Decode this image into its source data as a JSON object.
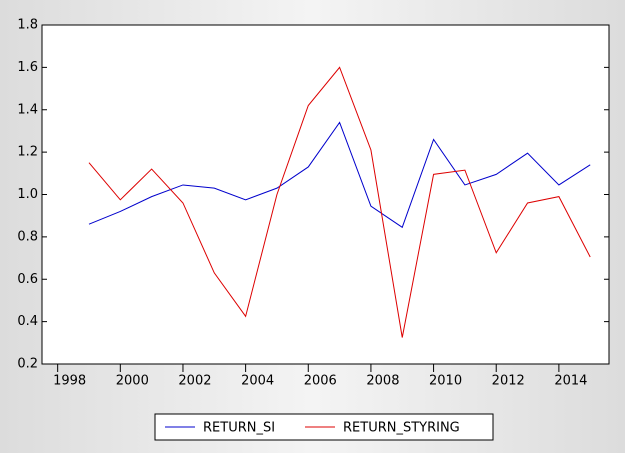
{
  "chart_data": {
    "type": "line",
    "x": [
      1999,
      2000,
      2001,
      2002,
      2003,
      2004,
      2005,
      2006,
      2007,
      2008,
      2009,
      2010,
      2011,
      2012,
      2013,
      2014,
      2015
    ],
    "series": [
      {
        "name": "RETURN_SI",
        "color": "#0000cc",
        "values": [
          0.86,
          0.92,
          0.99,
          1.045,
          1.03,
          0.975,
          1.03,
          1.13,
          1.34,
          0.945,
          0.845,
          1.26,
          1.045,
          1.095,
          1.195,
          1.045,
          1.14
        ]
      },
      {
        "name": "RETURN_STYRING",
        "color": "#dd0000",
        "values": [
          1.15,
          0.975,
          1.12,
          0.96,
          0.63,
          0.425,
          1.0,
          1.42,
          1.6,
          1.21,
          0.325,
          1.095,
          1.115,
          0.725,
          0.96,
          0.99,
          0.705
        ]
      }
    ],
    "xlim": [
      1997.5,
      2015.6
    ],
    "xticks": [
      1998,
      2000,
      2002,
      2004,
      2006,
      2008,
      2010,
      2012,
      2014
    ],
    "ylim": [
      0.2,
      1.8
    ],
    "yticks": [
      {
        "value": 0.2,
        "label": "0.2"
      },
      {
        "value": 0.4,
        "label": "0.4"
      },
      {
        "value": 0.6,
        "label": "0.6"
      },
      {
        "value": 0.8,
        "label": "0.8"
      },
      {
        "value": 1.0,
        "label": "1.0"
      },
      {
        "value": 1.2,
        "label": "1.2"
      },
      {
        "value": 1.4,
        "label": "1.4"
      },
      {
        "value": 1.6,
        "label": "1.6"
      },
      {
        "value": 1.8,
        "label": "1.8"
      }
    ],
    "legend": "bottom"
  }
}
